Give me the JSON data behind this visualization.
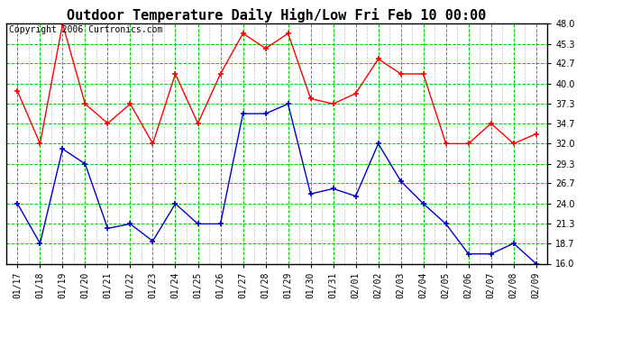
{
  "title": "Outdoor Temperature Daily High/Low Fri Feb 10 00:00",
  "copyright": "Copyright 2006 Curtronics.com",
  "dates": [
    "01/17",
    "01/18",
    "01/19",
    "01/20",
    "01/21",
    "01/22",
    "01/23",
    "01/24",
    "01/25",
    "01/26",
    "01/27",
    "01/28",
    "01/29",
    "01/30",
    "01/31",
    "02/01",
    "02/02",
    "02/03",
    "02/04",
    "02/05",
    "02/06",
    "02/07",
    "02/08",
    "02/09"
  ],
  "high": [
    39.0,
    32.0,
    48.0,
    37.3,
    34.7,
    37.3,
    32.0,
    41.3,
    34.7,
    41.3,
    46.7,
    44.7,
    46.7,
    38.0,
    37.3,
    38.7,
    43.3,
    41.3,
    41.3,
    32.0,
    32.0,
    34.7,
    32.0,
    33.3
  ],
  "low": [
    24.0,
    18.7,
    31.3,
    29.3,
    20.7,
    21.3,
    19.0,
    24.0,
    21.3,
    21.3,
    36.0,
    36.0,
    37.3,
    25.3,
    26.0,
    25.0,
    32.0,
    27.0,
    24.0,
    21.3,
    17.3,
    17.3,
    18.7,
    16.0
  ],
  "high_color": "#ff0000",
  "low_color": "#0000cc",
  "bg_color": "#ffffff",
  "plot_bg": "#ffffff",
  "grid_color": "#00cc00",
  "grid_minor_color": "#aaaaaa",
  "ylim": [
    16.0,
    48.0
  ],
  "yticks": [
    16.0,
    18.7,
    21.3,
    24.0,
    26.7,
    29.3,
    32.0,
    34.7,
    37.3,
    40.0,
    42.7,
    45.3,
    48.0
  ],
  "title_fontsize": 11,
  "copyright_fontsize": 7,
  "tick_fontsize": 7,
  "marker": "+",
  "marker_size": 5,
  "linewidth": 1.0
}
